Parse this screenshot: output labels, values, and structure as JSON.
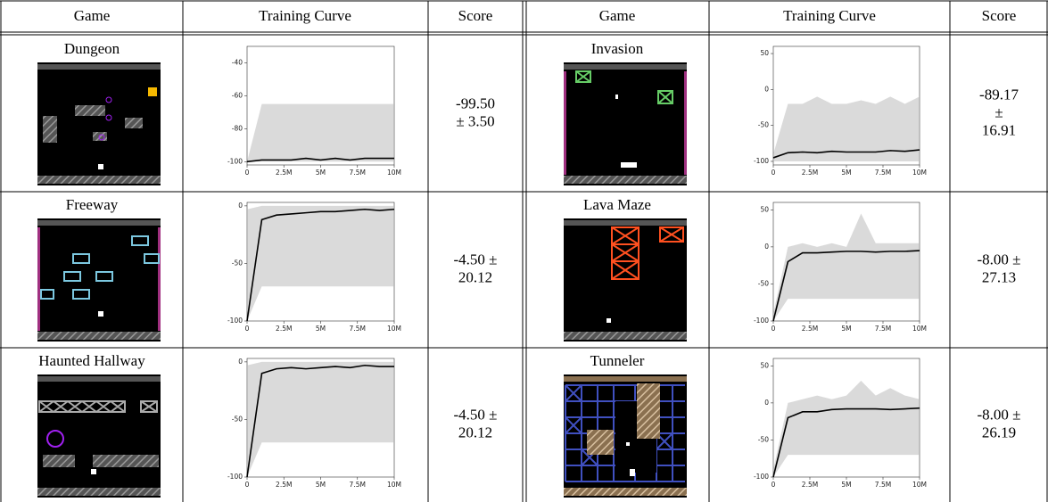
{
  "header": [
    "Game",
    "Training Curve",
    "Score",
    "Game",
    "Training Curve",
    "Score"
  ],
  "rows": [
    [
      {
        "game": "Dungeon",
        "curve": {
          "xlim": [
            0,
            10000000
          ],
          "ylim": [
            -102,
            -30
          ],
          "xticks": [
            0,
            {
              "value": 2500000,
              "label": "2.5M"
            },
            {
              "value": 5000000,
              "label": "5M"
            },
            {
              "value": 7500000,
              "label": "7.5M"
            },
            {
              "value": 10000000,
              "label": "10M"
            }
          ],
          "yticks": [
            -40,
            -60,
            -80,
            -100
          ],
          "x": [
            0,
            1000000,
            2000000,
            3000000,
            4000000,
            5000000,
            6000000,
            7000000,
            8000000,
            9000000,
            10000000
          ],
          "mean": [
            -100,
            -99,
            -99,
            -99,
            -98,
            -99,
            -98,
            -99,
            -98,
            -98,
            -98
          ],
          "low": [
            -100,
            -100,
            -100,
            -100,
            -100,
            -100,
            -100,
            -100,
            -100,
            -100,
            -100
          ],
          "high": [
            -100,
            -65,
            -65,
            -65,
            -65,
            -65,
            -65,
            -65,
            -65,
            -65,
            -65
          ]
        },
        "score": [
          "-99.50",
          "± 3.50"
        ]
      },
      {
        "game": "Invasion",
        "curve": {
          "xlim": [
            0,
            10000000
          ],
          "ylim": [
            -105,
            60
          ],
          "xticks": [
            0,
            {
              "value": 2500000,
              "label": "2.5M"
            },
            {
              "value": 5000000,
              "label": "5M"
            },
            {
              "value": 7500000,
              "label": "7.5M"
            },
            {
              "value": 10000000,
              "label": "10M"
            }
          ],
          "yticks": [
            50,
            0,
            -50,
            -100
          ],
          "x": [
            0,
            1000000,
            2000000,
            3000000,
            4000000,
            5000000,
            6000000,
            7000000,
            8000000,
            9000000,
            10000000
          ],
          "mean": [
            -95,
            -88,
            -87,
            -88,
            -86,
            -87,
            -87,
            -87,
            -85,
            -86,
            -84
          ],
          "low": [
            -100,
            -100,
            -100,
            -100,
            -100,
            -100,
            -100,
            -100,
            -100,
            -100,
            -100
          ],
          "high": [
            -90,
            -20,
            -20,
            -10,
            -20,
            -20,
            -15,
            -20,
            -10,
            -20,
            -10
          ]
        },
        "score": [
          "-89.17",
          "±",
          "16.91"
        ]
      }
    ],
    [
      {
        "game": "Freeway",
        "curve": {
          "xlim": [
            0,
            10000000
          ],
          "ylim": [
            -100,
            3
          ],
          "xticks": [
            0,
            {
              "value": 2500000,
              "label": "2.5M"
            },
            {
              "value": 5000000,
              "label": "5M"
            },
            {
              "value": 7500000,
              "label": "7.5M"
            },
            {
              "value": 10000000,
              "label": "10M"
            }
          ],
          "yticks": [
            0,
            -50,
            -100
          ],
          "x": [
            0,
            1000000,
            2000000,
            3000000,
            4000000,
            5000000,
            6000000,
            7000000,
            8000000,
            9000000,
            10000000
          ],
          "mean": [
            -100,
            -12,
            -8,
            -7,
            -6,
            -5,
            -5,
            -4,
            -3,
            -4,
            -3
          ],
          "low": [
            -100,
            -70,
            -70,
            -70,
            -70,
            -70,
            -70,
            -70,
            -70,
            -70,
            -70
          ],
          "high": [
            -3,
            0,
            0,
            0,
            0,
            0,
            0,
            0,
            0,
            0,
            0
          ]
        },
        "score": [
          "-4.50 ±",
          "20.12"
        ]
      },
      {
        "game": "Lava Maze",
        "curve": {
          "xlim": [
            0,
            10000000
          ],
          "ylim": [
            -100,
            60
          ],
          "xticks": [
            0,
            {
              "value": 2500000,
              "label": "2.5M"
            },
            {
              "value": 5000000,
              "label": "5M"
            },
            {
              "value": 7500000,
              "label": "7.5M"
            },
            {
              "value": 10000000,
              "label": "10M"
            }
          ],
          "yticks": [
            50,
            0,
            -50,
            -100
          ],
          "x": [
            0,
            1000000,
            2000000,
            3000000,
            4000000,
            5000000,
            6000000,
            7000000,
            8000000,
            9000000,
            10000000
          ],
          "mean": [
            -100,
            -20,
            -8,
            -8,
            -7,
            -6,
            -6,
            -7,
            -6,
            -6,
            -5
          ],
          "low": [
            -100,
            -70,
            -70,
            -70,
            -70,
            -70,
            -70,
            -70,
            -70,
            -70,
            -70
          ],
          "high": [
            -90,
            0,
            5,
            0,
            5,
            0,
            45,
            5,
            5,
            5,
            5
          ]
        },
        "score": [
          "-8.00 ±",
          "27.13"
        ]
      }
    ],
    [
      {
        "game": "Haunted Hallway",
        "curve": {
          "xlim": [
            0,
            10000000
          ],
          "ylim": [
            -100,
            3
          ],
          "xticks": [
            0,
            {
              "value": 2500000,
              "label": "2.5M"
            },
            {
              "value": 5000000,
              "label": "5M"
            },
            {
              "value": 7500000,
              "label": "7.5M"
            },
            {
              "value": 10000000,
              "label": "10M"
            }
          ],
          "yticks": [
            0,
            -50,
            -100
          ],
          "x": [
            0,
            1000000,
            2000000,
            3000000,
            4000000,
            5000000,
            6000000,
            7000000,
            8000000,
            9000000,
            10000000
          ],
          "mean": [
            -100,
            -10,
            -6,
            -5,
            -6,
            -5,
            -4,
            -5,
            -3,
            -4,
            -4
          ],
          "low": [
            -100,
            -70,
            -70,
            -70,
            -70,
            -70,
            -70,
            -70,
            -70,
            -70,
            -70
          ],
          "high": [
            -3,
            0,
            0,
            0,
            0,
            0,
            0,
            0,
            0,
            0,
            0
          ]
        },
        "score": [
          "-4.50 ±",
          "20.12"
        ]
      },
      {
        "game": "Tunneler",
        "curve": {
          "xlim": [
            0,
            10000000
          ],
          "ylim": [
            -100,
            60
          ],
          "xticks": [
            0,
            {
              "value": 2500000,
              "label": "2.5M"
            },
            {
              "value": 5000000,
              "label": "5M"
            },
            {
              "value": 7500000,
              "label": "7.5M"
            },
            {
              "value": 10000000,
              "label": "10M"
            }
          ],
          "yticks": [
            50,
            0,
            -50,
            -100
          ],
          "x": [
            0,
            1000000,
            2000000,
            3000000,
            4000000,
            5000000,
            6000000,
            7000000,
            8000000,
            9000000,
            10000000
          ],
          "mean": [
            -100,
            -20,
            -12,
            -12,
            -9,
            -8,
            -8,
            -8,
            -9,
            -8,
            -7
          ],
          "low": [
            -100,
            -70,
            -70,
            -70,
            -70,
            -70,
            -70,
            -70,
            -70,
            -70,
            -70
          ],
          "high": [
            -90,
            0,
            5,
            10,
            5,
            10,
            30,
            10,
            20,
            10,
            5
          ]
        },
        "score": [
          "-8.00 ±",
          "26.19"
        ]
      }
    ]
  ]
}
